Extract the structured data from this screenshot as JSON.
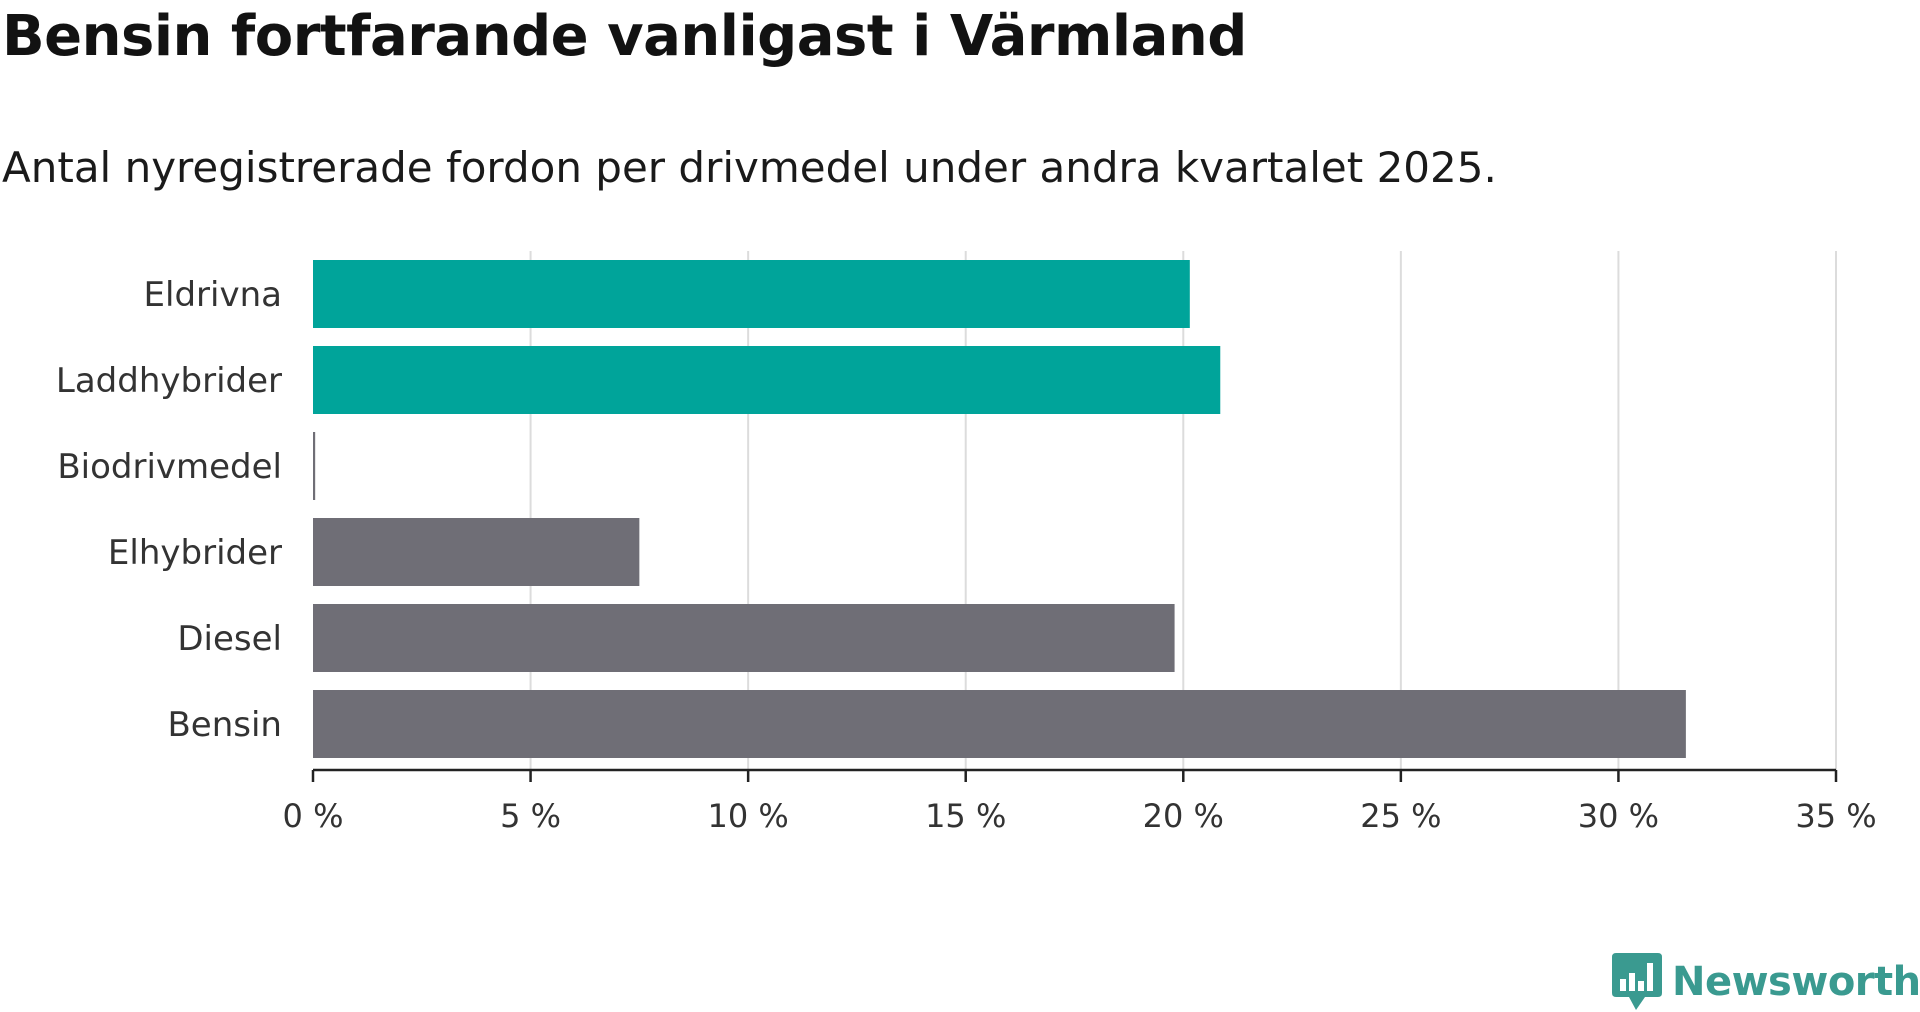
{
  "header": {
    "title": "Bensin fortfarande vanligast i Värmland",
    "subtitle": "Antal nyregistrerade fordon per drivmedel under andra kvartalet 2025."
  },
  "brand": {
    "name": "Newsworthy",
    "color": "#3a9a90",
    "icon": "newsworthy-logo-icon"
  },
  "colors": {
    "highlight": "#00a49a",
    "base": "#6f6e76",
    "grid": "#dcdcdc",
    "axis": "#222222",
    "label": "#333333"
  },
  "chart_data": {
    "type": "bar",
    "orientation": "horizontal",
    "categories": [
      "Eldrivna",
      "Laddhybrider",
      "Biodrivmedel",
      "Elhybrider",
      "Diesel",
      "Bensin"
    ],
    "values": [
      20.15,
      20.85,
      0.05,
      7.5,
      19.8,
      31.55
    ],
    "highlighted": [
      true,
      true,
      false,
      false,
      false,
      false
    ],
    "xlim": [
      0,
      35
    ],
    "xticks": [
      0,
      5,
      10,
      15,
      20,
      25,
      30,
      35
    ],
    "xtick_labels": [
      "0 %",
      "5 %",
      "10 %",
      "15 %",
      "20 %",
      "25 %",
      "30 %",
      "35 %"
    ],
    "grid": true
  }
}
